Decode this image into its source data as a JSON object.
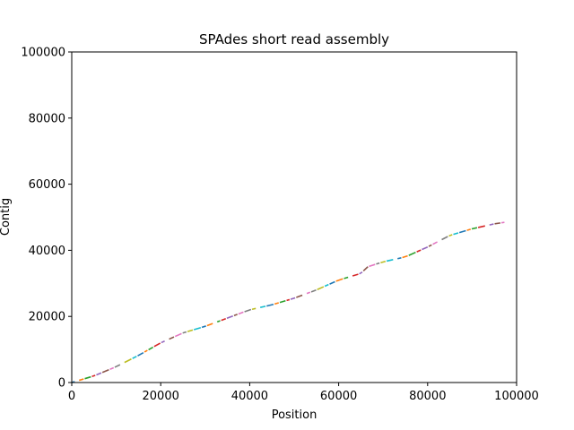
{
  "chart_data": {
    "type": "line",
    "title": "SPAdes short read assembly",
    "xlabel": "Position",
    "ylabel": "Contig",
    "xlim": [
      0,
      100000
    ],
    "ylim": [
      0,
      100000
    ],
    "xticks": [
      "0",
      "20000",
      "40000",
      "60000",
      "80000",
      "100000"
    ],
    "yticks": [
      "0",
      "20000",
      "40000",
      "60000",
      "80000",
      "100000"
    ],
    "grid": false,
    "legend": "none",
    "palette": [
      "#1f77b4",
      "#ff7f0e",
      "#2ca02c",
      "#d62728",
      "#9467bd",
      "#8c564b",
      "#e377c2",
      "#7f7f7f",
      "#bcbd22",
      "#17becf"
    ],
    "trend": {
      "x": [
        0,
        5000,
        10000,
        15000,
        20000,
        25000,
        30000,
        35000,
        40000,
        45000,
        50000,
        55000,
        60000,
        65000,
        66500,
        70000,
        75000,
        80000,
        85000,
        90000,
        95000,
        97500
      ],
      "y": [
        0,
        2000,
        4800,
        8200,
        12000,
        15000,
        17000,
        19500,
        22000,
        23500,
        25500,
        28000,
        31000,
        33000,
        35000,
        36500,
        38000,
        41000,
        44500,
        46500,
        48000,
        48500
      ]
    },
    "segment_length": 1100,
    "segment_gap": 250
  }
}
